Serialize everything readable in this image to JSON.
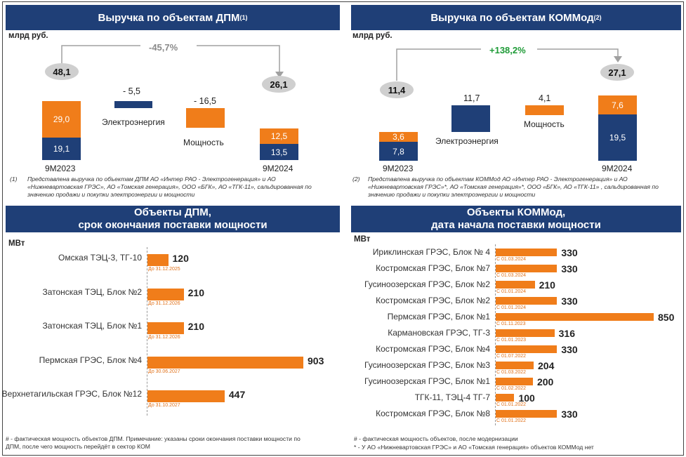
{
  "colors": {
    "navy": "#1f3f77",
    "orange": "#f07d1a",
    "positive": "#1e9b37"
  },
  "dpm_revenue": {
    "title": "Выручка по объектам ДПМ",
    "title_sup": "(1)",
    "unit": "млрд руб.",
    "change": "-45,7%",
    "start_total": "48,1",
    "end_total": "26,1",
    "start_year": "9М2023",
    "end_year": "9М2024",
    "footnote_mark": "(1)",
    "footnote": "Представлена выручка по объектам ДПМ АО «Интер РАО - Электрогенерация» и АО «Нижневартовская ГРЭС», АО «Томская генерация», ООО «БГК», АО «ТГК-11», сальдированная по значению продажи и покупки электроэнергии и мощности"
  },
  "kommod_revenue": {
    "title": "Выручка по объектам КОММод",
    "title_sup": "(2)",
    "unit": "млрд руб.",
    "change": "+138,2%",
    "start_total": "11,4",
    "end_total": "27,1",
    "start_year": "9М2023",
    "end_year": "9М2024",
    "footnote_mark": "(2)",
    "footnote": "Представлена выручка по объектам КОММод АО «Интер РАО - Электрогенерация» и АО «Нижневартовская ГРЭС»*, АО «Томская генерация»*, ООО «БГК», АО «ТГК-11» , сальдированная по значению продажи и покупки электроэнергии и мощности"
  },
  "dpm_objects": {
    "title_line1": "Объекты ДПМ,",
    "title_line2": "срок окончания поставки мощности",
    "unit": "МВт",
    "note": "# - фактическая мощность объектов ДПМ. Примечание: указаны сроки окончания поставки мощности по ДПМ, после чего мощность перейдёт в сектор КОМ"
  },
  "kommod_objects": {
    "title_line1": "Объекты КОММод,",
    "title_line2": "дата начала поставки мощности",
    "unit": "МВт",
    "note1": "# - фактическая мощность объектов, после модернизации",
    "note2": "* - У АО «Нижневартовская ГРЭС» и АО «Томская генерация» объектов КОММод нет"
  },
  "chart_data": [
    {
      "type": "bar",
      "title": "Выручка по объектам ДПМ",
      "ylabel": "млрд руб.",
      "categories": [
        "9М2023",
        "Электроэнергия",
        "Мощность",
        "9М2024"
      ],
      "series": [
        {
          "name": "",
          "color": "#1f3f77",
          "values": [
            19.1,
            -5.5,
            null,
            13.5
          ],
          "labels": [
            "19,1",
            "- 5,5",
            "",
            "13,5"
          ]
        },
        {
          "name": "",
          "color": "#f07d1a",
          "values": [
            29.0,
            null,
            -16.5,
            12.5
          ],
          "labels": [
            "29,0",
            "",
            "- 16,5",
            "12,5"
          ]
        }
      ],
      "totals": [
        48.1,
        null,
        null,
        26.1
      ],
      "change": "-45,7%"
    },
    {
      "type": "bar",
      "title": "Выручка по объектам КОММод",
      "ylabel": "млрд руб.",
      "categories": [
        "9М2023",
        "Электроэнергия",
        "Мощность",
        "9М2024"
      ],
      "series": [
        {
          "name": "",
          "color": "#1f3f77",
          "values": [
            7.8,
            11.7,
            null,
            19.5
          ],
          "labels": [
            "7,8",
            "11,7",
            "",
            "19,5"
          ]
        },
        {
          "name": "",
          "color": "#f07d1a",
          "values": [
            3.6,
            null,
            4.1,
            7.6
          ],
          "labels": [
            "3,6",
            "",
            "4,1",
            "7,6"
          ]
        }
      ],
      "totals": [
        11.4,
        null,
        null,
        27.1
      ],
      "change": "+138,2%"
    },
    {
      "type": "bar",
      "orientation": "horizontal",
      "title": "Объекты ДПМ, срок окончания поставки мощности",
      "unit": "МВт",
      "xlim": [
        0,
        903
      ],
      "categories": [
        "Омская ТЭЦ-3, ТГ-10",
        "Затонская ТЭЦ, Блок №2",
        "Затонская ТЭЦ, Блок №1",
        "Пермская ГРЭС, Блок №4",
        "Верхнетагильская ГРЭС, Блок №12"
      ],
      "values": [
        120,
        210,
        210,
        903,
        447
      ],
      "dates": [
        "До 31.12.2025",
        "До 31.12.2026",
        "До 31.12.2026",
        "До 30.06.2027",
        "До 31.10.2027"
      ]
    },
    {
      "type": "bar",
      "orientation": "horizontal",
      "title": "Объекты КОММод, дата начала поставки мощности",
      "unit": "МВт",
      "xlim": [
        0,
        850
      ],
      "categories": [
        "Ириклинская ГРЭС, Блок № 4",
        "Костромская ГРЭС, Блок №7",
        "Гусиноозерская ГРЭС, Блок №2",
        "Костромская ГРЭС, Блок №2",
        "Пермская ГРЭС, Блок №1",
        "Кармановская ГРЭС, ТГ-3",
        "Костромская ГРЭС, Блок №4",
        "Гусиноозерская ГРЭС, Блок №3",
        "Гусиноозерская ГРЭС, Блок №1",
        "ТГК-11, ТЭЦ-4 ТГ-7",
        "Костромская ГРЭС, Блок №8"
      ],
      "values": [
        330,
        330,
        210,
        330,
        850,
        316,
        330,
        204,
        200,
        100,
        330
      ],
      "dates": [
        "С 01.03.2024",
        "С 01.03.2024",
        "С 01.01.2024",
        "С 01.01.2024",
        "С 01.11.2023",
        "С 01.01.2023",
        "С 01.07.2022",
        "С 01.03.2022",
        "С 01.02.2022",
        "С 01.01.2022",
        "С 01.01.2022"
      ]
    }
  ]
}
